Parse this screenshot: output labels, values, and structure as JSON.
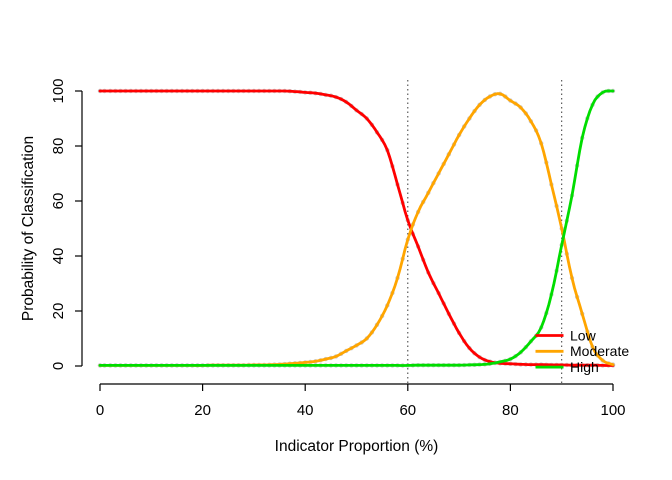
{
  "page": {
    "background": "#ffffff"
  },
  "chart_data": {
    "type": "line",
    "title": "",
    "xlabel": "Indicator Proportion (%)",
    "ylabel": "Probability of Classification",
    "xlim": [
      0,
      100
    ],
    "ylim": [
      0,
      100
    ],
    "x_ticks": [
      0,
      20,
      40,
      60,
      80,
      100
    ],
    "y_ticks": [
      0,
      20,
      40,
      60,
      80,
      100
    ],
    "grid": false,
    "legend_position": "bottom-right",
    "marker_color": "#c9c9c9",
    "axis_color": "#000000",
    "vlines": {
      "x": [
        60,
        90
      ],
      "style": "dotted",
      "color": "#3a3a3a"
    },
    "x": [
      0,
      2,
      4,
      6,
      8,
      10,
      12,
      14,
      16,
      18,
      20,
      22,
      24,
      26,
      28,
      30,
      32,
      34,
      36,
      38,
      40,
      42,
      44,
      46,
      48,
      50,
      52,
      54,
      56,
      58,
      60,
      62,
      64,
      66,
      68,
      70,
      72,
      74,
      76,
      78,
      80,
      82,
      84,
      86,
      88,
      90,
      92,
      94,
      96,
      98,
      100
    ],
    "series": [
      {
        "name": "Low",
        "color": "#ff0000",
        "values": [
          100,
          100,
          100,
          100,
          100,
          100,
          100,
          100,
          100,
          100,
          100,
          100,
          100,
          100,
          100,
          100,
          100,
          100,
          100,
          99.8,
          99.5,
          99.2,
          98.6,
          97.8,
          96,
          93,
          90,
          85,
          78.5,
          66,
          53,
          43.5,
          34,
          26.5,
          19,
          12,
          6.5,
          3.2,
          1.6,
          1,
          0.8,
          0.6,
          0.5,
          0.5,
          0.4,
          0.4,
          0.3,
          0.3,
          0.3,
          0.2,
          0.2
        ]
      },
      {
        "name": "Moderate",
        "color": "#ffa500",
        "values": [
          0.2,
          0.2,
          0.2,
          0.2,
          0.2,
          0.2,
          0.2,
          0.2,
          0.2,
          0.2,
          0.2,
          0.3,
          0.3,
          0.3,
          0.3,
          0.4,
          0.4,
          0.5,
          0.7,
          1,
          1.3,
          1.7,
          2.5,
          3.5,
          5.5,
          7.5,
          10,
          15,
          22,
          32,
          46,
          56,
          63,
          70,
          77,
          84,
          90,
          95,
          98,
          99,
          96.5,
          94,
          89,
          81,
          66,
          50,
          32,
          19,
          7,
          2,
          0.5
        ]
      },
      {
        "name": "High",
        "color": "#00dd00",
        "values": [
          0.2,
          0.2,
          0.2,
          0.2,
          0.2,
          0.2,
          0.2,
          0.2,
          0.2,
          0.2,
          0.2,
          0.2,
          0.2,
          0.2,
          0.2,
          0.2,
          0.2,
          0.2,
          0.2,
          0.2,
          0.2,
          0.2,
          0.2,
          0.2,
          0.2,
          0.2,
          0.2,
          0.2,
          0.2,
          0.2,
          0.2,
          0.3,
          0.3,
          0.3,
          0.3,
          0.3,
          0.4,
          0.5,
          0.8,
          1.5,
          2.5,
          5,
          9,
          14,
          26,
          44,
          62,
          83,
          95,
          99.5,
          100
        ]
      }
    ]
  }
}
